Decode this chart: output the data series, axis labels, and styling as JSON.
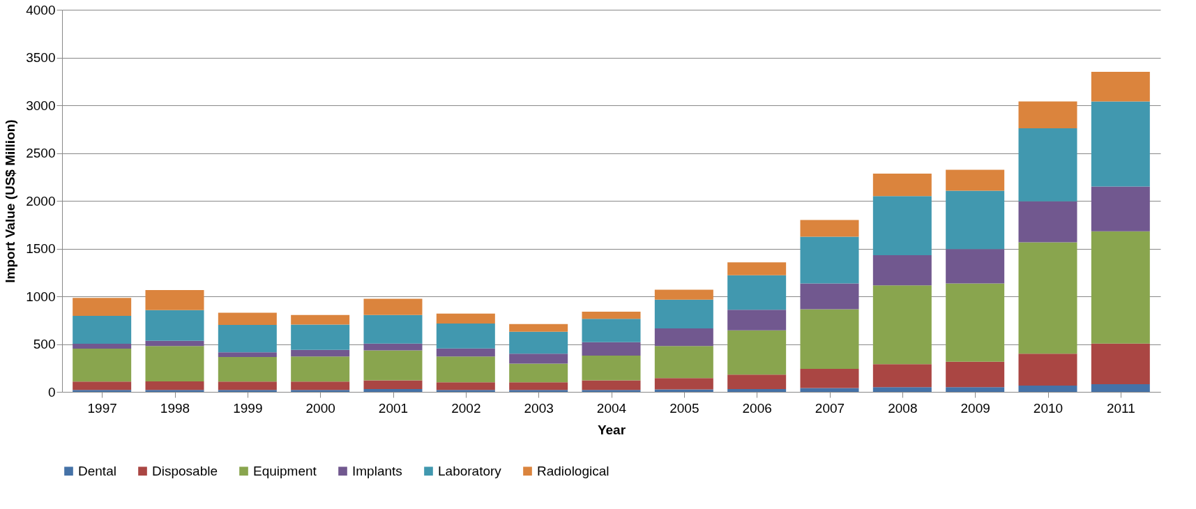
{
  "chart_data": {
    "type": "bar",
    "stacked": true,
    "xlabel": "Year",
    "ylabel": "Import Value (US$ Million)",
    "categories": [
      "1997",
      "1998",
      "1999",
      "2000",
      "2001",
      "2002",
      "2003",
      "2004",
      "2005",
      "2006",
      "2007",
      "2008",
      "2009",
      "2010",
      "2011"
    ],
    "series": [
      {
        "name": "Dental",
        "color": "#4572a7",
        "values": [
          20,
          20,
          20,
          20,
          30,
          20,
          20,
          20,
          25,
          30,
          40,
          50,
          50,
          65,
          80
        ]
      },
      {
        "name": "Disposable",
        "color": "#aa4643",
        "values": [
          87,
          90,
          88,
          88,
          90,
          80,
          80,
          100,
          120,
          150,
          200,
          240,
          265,
          335,
          425
        ]
      },
      {
        "name": "Equipment",
        "color": "#89a54e",
        "values": [
          346,
          370,
          257,
          262,
          315,
          270,
          195,
          260,
          335,
          465,
          625,
          825,
          820,
          1165,
          1175
        ]
      },
      {
        "name": "Implants",
        "color": "#71588f",
        "values": [
          50,
          55,
          50,
          70,
          70,
          85,
          105,
          140,
          185,
          215,
          270,
          315,
          360,
          430,
          470
        ]
      },
      {
        "name": "Laboratory",
        "color": "#4198af",
        "values": [
          292,
          320,
          285,
          265,
          300,
          260,
          230,
          245,
          300,
          360,
          490,
          620,
          610,
          765,
          890
        ]
      },
      {
        "name": "Radiological",
        "color": "#db843d",
        "values": [
          188,
          210,
          128,
          100,
          170,
          105,
          80,
          75,
          105,
          135,
          175,
          235,
          220,
          280,
          310
        ]
      }
    ],
    "ylim": [
      0,
      4000
    ],
    "yticks": [
      0,
      500,
      1000,
      1500,
      2000,
      2500,
      3000,
      3500,
      4000
    ],
    "grid": "y",
    "legend": "bottom"
  }
}
